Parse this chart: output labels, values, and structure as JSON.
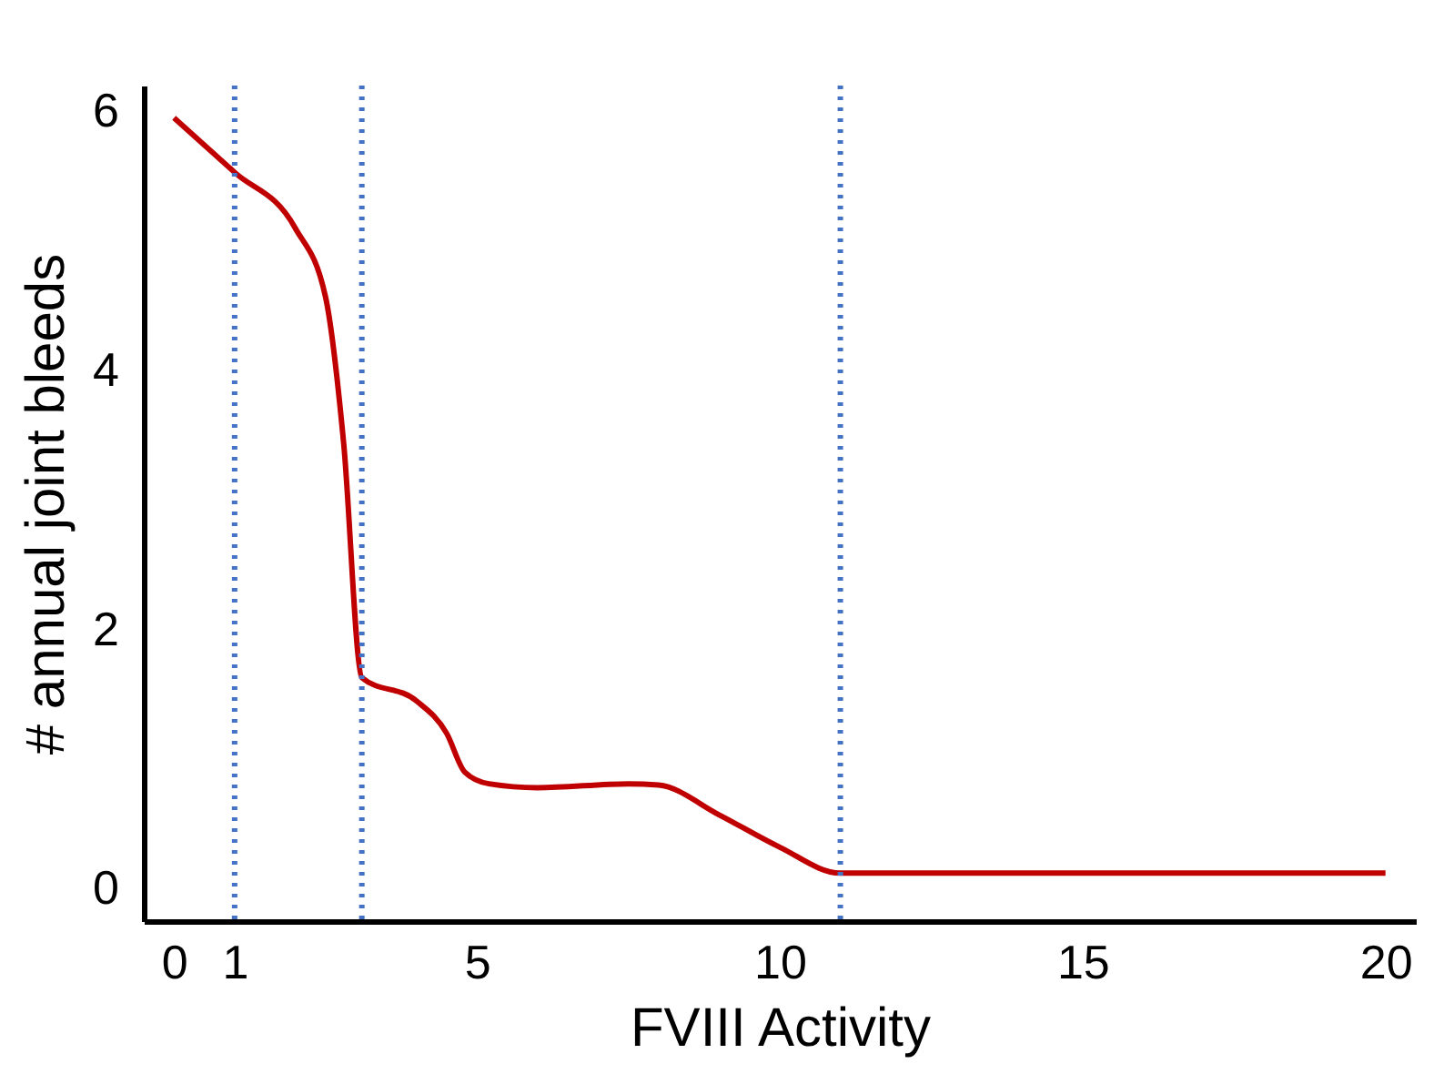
{
  "chart_data": {
    "type": "line",
    "xlabel": "FVIII Activity",
    "ylabel": "# annual joint bleeds",
    "series": [
      {
        "color": "#c00000",
        "x": [
          0,
          1,
          2,
          2.5,
          2.8,
          3.1,
          4,
          4.5,
          4.8,
          5.2,
          6,
          7.5,
          8,
          9,
          10,
          11,
          20
        ],
        "values": [
          5.95,
          5.53,
          5.1,
          4.57,
          3.44,
          1.63,
          1.45,
          1.2,
          0.9,
          0.81,
          0.78,
          0.81,
          0.8,
          0.57,
          0.32,
          0.12,
          0.12
        ]
      }
    ],
    "xlim": [
      -0.5,
      20.5
    ],
    "xticks": [
      0,
      1,
      5,
      10,
      15,
      20
    ],
    "ylim": [
      -0.25,
      6.2
    ],
    "yticks": [
      0,
      2,
      4,
      6
    ],
    "grid": false,
    "marker": "none",
    "line_style": "solid",
    "ref_lines": [
      {
        "axis": "x",
        "value": 1,
        "color": "#4472c4",
        "line_style": "dotted"
      },
      {
        "axis": "x",
        "value": 3.1,
        "color": "#4472c4",
        "line_style": "dotted"
      },
      {
        "axis": "x",
        "value": 11,
        "color": "#4472c4",
        "line_style": "dotted"
      }
    ]
  }
}
